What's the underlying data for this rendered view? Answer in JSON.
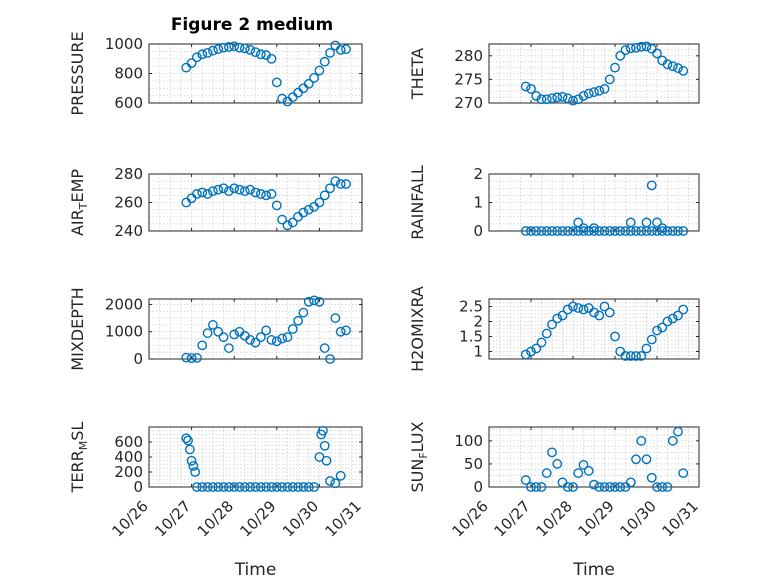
{
  "figure_title": "Figure 2 medium",
  "colors": {
    "series": "#0072BD",
    "axis": "#262626",
    "grid": "#cfcfcf"
  },
  "chart_data": [
    {
      "type": "scatter",
      "ylabel": "PRESSURE",
      "ylabel_parts": [
        {
          "t": "PRESSURE",
          "sub": false
        }
      ],
      "ylim": [
        600,
        1000
      ],
      "yticks": [
        600,
        800,
        1000
      ],
      "yticklabels": [
        "600",
        "800",
        "1000"
      ],
      "xlim": [
        "10/26",
        "10/31"
      ],
      "xticklabels": [],
      "x": [
        "10/26 21:00",
        "10/27 00:00",
        "10/27 03:00",
        "10/27 06:00",
        "10/27 09:00",
        "10/27 12:00",
        "10/27 15:00",
        "10/27 18:00",
        "10/27 21:00",
        "10/28 00:00",
        "10/28 03:00",
        "10/28 06:00",
        "10/28 09:00",
        "10/28 12:00",
        "10/28 15:00",
        "10/28 18:00",
        "10/28 21:00",
        "10/29 00:00",
        "10/29 03:00",
        "10/29 06:00",
        "10/29 09:00",
        "10/29 12:00",
        "10/29 15:00",
        "10/29 18:00",
        "10/29 21:00",
        "10/30 00:00",
        "10/30 03:00",
        "10/30 06:00",
        "10/30 09:00",
        "10/30 12:00",
        "10/30 15:00"
      ],
      "y": [
        840,
        870,
        910,
        930,
        940,
        955,
        965,
        975,
        980,
        985,
        975,
        970,
        960,
        945,
        930,
        925,
        900,
        740,
        630,
        610,
        640,
        670,
        700,
        730,
        770,
        820,
        880,
        940,
        990,
        960,
        965
      ]
    },
    {
      "type": "scatter",
      "ylabel": "THETA",
      "ylabel_parts": [
        {
          "t": "THETA",
          "sub": false
        }
      ],
      "ylim": [
        270,
        282.5
      ],
      "yticks": [
        270,
        275,
        280
      ],
      "yticklabels": [
        "270",
        "275",
        "280"
      ],
      "xlim": [
        "10/26",
        "10/31"
      ],
      "xticklabels": [],
      "x": [
        "10/26 21:00",
        "10/27 00:00",
        "10/27 03:00",
        "10/27 06:00",
        "10/27 09:00",
        "10/27 12:00",
        "10/27 15:00",
        "10/27 18:00",
        "10/27 21:00",
        "10/28 00:00",
        "10/28 03:00",
        "10/28 06:00",
        "10/28 09:00",
        "10/28 12:00",
        "10/28 15:00",
        "10/28 18:00",
        "10/28 21:00",
        "10/29 00:00",
        "10/29 03:00",
        "10/29 06:00",
        "10/29 09:00",
        "10/29 12:00",
        "10/29 15:00",
        "10/29 18:00",
        "10/29 21:00",
        "10/30 00:00",
        "10/30 03:00",
        "10/30 06:00",
        "10/30 09:00",
        "10/30 12:00",
        "10/30 15:00"
      ],
      "y": [
        273.5,
        273,
        271.5,
        270.8,
        270.8,
        271,
        271.2,
        271.3,
        271,
        270.5,
        270.8,
        271.5,
        272,
        272.3,
        272.6,
        273,
        275,
        277.5,
        280,
        281.2,
        281.6,
        281.7,
        281.9,
        282,
        281.5,
        280.5,
        279,
        278.2,
        277.8,
        277.4,
        276.8
      ]
    },
    {
      "type": "scatter",
      "ylabel": "AIR_TEMP",
      "ylabel_parts": [
        {
          "t": "AIR",
          "sub": false
        },
        {
          "t": "T",
          "sub": true
        },
        {
          "t": "EMP",
          "sub": false
        }
      ],
      "ylim": [
        240,
        280
      ],
      "yticks": [
        240,
        260,
        280
      ],
      "yticklabels": [
        "240",
        "260",
        "280"
      ],
      "xlim": [
        "10/26",
        "10/31"
      ],
      "xticklabels": [],
      "x": [
        "10/26 21:00",
        "10/27 00:00",
        "10/27 03:00",
        "10/27 06:00",
        "10/27 09:00",
        "10/27 12:00",
        "10/27 15:00",
        "10/27 18:00",
        "10/27 21:00",
        "10/28 00:00",
        "10/28 03:00",
        "10/28 06:00",
        "10/28 09:00",
        "10/28 12:00",
        "10/28 15:00",
        "10/28 18:00",
        "10/28 21:00",
        "10/29 00:00",
        "10/29 03:00",
        "10/29 06:00",
        "10/29 09:00",
        "10/29 12:00",
        "10/29 15:00",
        "10/29 18:00",
        "10/29 21:00",
        "10/30 00:00",
        "10/30 03:00",
        "10/30 06:00",
        "10/30 09:00",
        "10/30 12:00",
        "10/30 15:00"
      ],
      "y": [
        260,
        263,
        266,
        267,
        266,
        268,
        269,
        270,
        268,
        270,
        269,
        268,
        269,
        267,
        266,
        265,
        266,
        258,
        248,
        244,
        246,
        250,
        253,
        255,
        257,
        260,
        265,
        270,
        275,
        273,
        273
      ]
    },
    {
      "type": "scatter",
      "ylabel": "RAINFALL",
      "ylabel_parts": [
        {
          "t": "RAINFALL",
          "sub": false
        }
      ],
      "ylim": [
        0,
        2
      ],
      "yticks": [
        0,
        1,
        2
      ],
      "yticklabels": [
        "0",
        "1",
        "2"
      ],
      "xlim": [
        "10/26",
        "10/31"
      ],
      "xticklabels": [],
      "x": [
        "10/26 21:00",
        "10/27 00:00",
        "10/27 03:00",
        "10/27 06:00",
        "10/27 09:00",
        "10/27 12:00",
        "10/27 15:00",
        "10/27 18:00",
        "10/27 21:00",
        "10/28 00:00",
        "10/28 03:00",
        "10/28 06:00",
        "10/28 09:00",
        "10/28 12:00",
        "10/28 15:00",
        "10/28 18:00",
        "10/28 21:00",
        "10/29 00:00",
        "10/29 03:00",
        "10/29 06:00",
        "10/29 09:00",
        "10/29 12:00",
        "10/29 15:00",
        "10/29 18:00",
        "10/29 21:00",
        "10/30 00:00",
        "10/30 03:00",
        "10/30 06:00",
        "10/30 09:00",
        "10/30 12:00",
        "10/30 15:00",
        "10/28 03:00",
        "10/28 06:00",
        "10/28 12:00",
        "10/29 09:00",
        "10/29 18:00",
        "10/29 21:00",
        "10/30 00:00",
        "10/30 03:00"
      ],
      "y": [
        0,
        0,
        0,
        0,
        0,
        0,
        0,
        0,
        0,
        0,
        0,
        0,
        0,
        0,
        0,
        0,
        0,
        0,
        0,
        0,
        0,
        0,
        0,
        0,
        0,
        0,
        0,
        0,
        0,
        0,
        0,
        0.3,
        0.1,
        0.1,
        0.3,
        0.3,
        1.6,
        0.3,
        0.1
      ]
    },
    {
      "type": "scatter",
      "ylabel": "MIXDEPTH",
      "ylabel_parts": [
        {
          "t": "MIXDEPTH",
          "sub": false
        }
      ],
      "ylim": [
        0,
        2200
      ],
      "yticks": [
        0,
        1000,
        2000
      ],
      "yticklabels": [
        "0",
        "1000",
        "2000"
      ],
      "xlim": [
        "10/26",
        "10/31"
      ],
      "xticklabels": [],
      "x": [
        "10/26 21:00",
        "10/27 00:00",
        "10/27 03:00",
        "10/27 06:00",
        "10/27 09:00",
        "10/27 12:00",
        "10/27 15:00",
        "10/27 18:00",
        "10/27 21:00",
        "10/28 00:00",
        "10/28 03:00",
        "10/28 06:00",
        "10/28 09:00",
        "10/28 12:00",
        "10/28 15:00",
        "10/28 18:00",
        "10/28 21:00",
        "10/29 00:00",
        "10/29 03:00",
        "10/29 06:00",
        "10/29 09:00",
        "10/29 12:00",
        "10/29 15:00",
        "10/29 18:00",
        "10/29 21:00",
        "10/30 00:00",
        "10/30 03:00",
        "10/30 06:00",
        "10/30 09:00",
        "10/30 12:00",
        "10/30 15:00"
      ],
      "y": [
        50,
        30,
        40,
        500,
        950,
        1250,
        1000,
        800,
        400,
        900,
        1000,
        850,
        700,
        600,
        800,
        1050,
        700,
        650,
        750,
        800,
        1100,
        1400,
        1700,
        2100,
        2150,
        2100,
        400,
        0,
        1500,
        1000,
        1050
      ]
    },
    {
      "type": "scatter",
      "ylabel": "H2OMIXRA",
      "ylabel_parts": [
        {
          "t": "H2OMIXRA",
          "sub": false
        }
      ],
      "ylim": [
        0.75,
        2.75
      ],
      "yticks": [
        1,
        1.5,
        2,
        2.5
      ],
      "yticklabels": [
        "1",
        "1.5",
        "2",
        "2.5"
      ],
      "xlim": [
        "10/26",
        "10/31"
      ],
      "xticklabels": [],
      "x": [
        "10/26 21:00",
        "10/27 00:00",
        "10/27 03:00",
        "10/27 06:00",
        "10/27 09:00",
        "10/27 12:00",
        "10/27 15:00",
        "10/27 18:00",
        "10/27 21:00",
        "10/28 00:00",
        "10/28 03:00",
        "10/28 06:00",
        "10/28 09:00",
        "10/28 12:00",
        "10/28 15:00",
        "10/28 18:00",
        "10/28 21:00",
        "10/29 00:00",
        "10/29 03:00",
        "10/29 06:00",
        "10/29 09:00",
        "10/29 12:00",
        "10/29 15:00",
        "10/29 18:00",
        "10/29 21:00",
        "10/30 00:00",
        "10/30 03:00",
        "10/30 06:00",
        "10/30 09:00",
        "10/30 12:00",
        "10/30 15:00"
      ],
      "y": [
        0.9,
        1.0,
        1.1,
        1.3,
        1.6,
        1.9,
        2.1,
        2.2,
        2.4,
        2.5,
        2.45,
        2.4,
        2.45,
        2.3,
        2.2,
        2.5,
        2.3,
        1.5,
        1.0,
        0.85,
        0.85,
        0.85,
        0.85,
        1.1,
        1.4,
        1.7,
        1.8,
        2.0,
        2.1,
        2.2,
        2.4
      ]
    },
    {
      "type": "scatter",
      "ylabel": "TERR_MSL",
      "ylabel_parts": [
        {
          "t": "TERR",
          "sub": false
        },
        {
          "t": "M",
          "sub": true
        },
        {
          "t": "SL",
          "sub": false
        }
      ],
      "ylim": [
        0,
        800
      ],
      "yticks": [
        0,
        200,
        400,
        600
      ],
      "yticklabels": [
        "0",
        "200",
        "400",
        "600"
      ],
      "xlim": [
        "10/26",
        "10/31"
      ],
      "xticks": [
        0,
        1,
        2,
        3,
        4,
        5
      ],
      "xticklabels": [
        "10/26",
        "10/27",
        "10/28",
        "10/29",
        "10/30",
        "10/31"
      ],
      "xlabel": "Time",
      "x": [
        "10/26 21:00",
        "10/26 22:00",
        "10/26 23:00",
        "10/27 00:00",
        "10/27 01:00",
        "10/27 02:00",
        "10/27 03:00",
        "10/27 06:00",
        "10/27 09:00",
        "10/27 12:00",
        "10/27 15:00",
        "10/27 18:00",
        "10/27 21:00",
        "10/28 00:00",
        "10/28 03:00",
        "10/28 06:00",
        "10/28 09:00",
        "10/28 12:00",
        "10/28 15:00",
        "10/28 18:00",
        "10/28 21:00",
        "10/29 00:00",
        "10/29 03:00",
        "10/29 06:00",
        "10/29 09:00",
        "10/29 12:00",
        "10/29 15:00",
        "10/29 18:00",
        "10/29 21:00",
        "10/30 00:00",
        "10/30 01:00",
        "10/30 02:00",
        "10/30 03:00",
        "10/30 04:00",
        "10/30 06:00",
        "10/30 09:00",
        "10/30 12:00"
      ],
      "y": [
        650,
        620,
        500,
        350,
        280,
        200,
        0,
        0,
        0,
        0,
        0,
        0,
        0,
        0,
        0,
        0,
        0,
        0,
        0,
        0,
        0,
        0,
        0,
        0,
        0,
        0,
        0,
        0,
        0,
        400,
        700,
        750,
        550,
        350,
        80,
        50,
        150
      ]
    },
    {
      "type": "scatter",
      "ylabel": "SUN_FLUX",
      "ylabel_parts": [
        {
          "t": "SUN",
          "sub": false
        },
        {
          "t": "F",
          "sub": true
        },
        {
          "t": "LUX",
          "sub": false
        }
      ],
      "ylim": [
        0,
        130
      ],
      "yticks": [
        0,
        50,
        100
      ],
      "yticklabels": [
        "0",
        "50",
        "100"
      ],
      "xlim": [
        "10/26",
        "10/31"
      ],
      "xticks": [
        0,
        1,
        2,
        3,
        4,
        5
      ],
      "xticklabels": [
        "10/26",
        "10/27",
        "10/28",
        "10/29",
        "10/30",
        "10/31"
      ],
      "xlabel": "Time",
      "x": [
        "10/26 21:00",
        "10/27 00:00",
        "10/27 03:00",
        "10/27 06:00",
        "10/27 09:00",
        "10/27 12:00",
        "10/27 15:00",
        "10/27 18:00",
        "10/27 21:00",
        "10/28 00:00",
        "10/28 03:00",
        "10/28 06:00",
        "10/28 09:00",
        "10/28 12:00",
        "10/28 15:00",
        "10/28 18:00",
        "10/28 21:00",
        "10/29 00:00",
        "10/29 03:00",
        "10/29 06:00",
        "10/29 09:00",
        "10/29 12:00",
        "10/29 15:00",
        "10/29 18:00",
        "10/29 21:00",
        "10/30 00:00",
        "10/30 03:00",
        "10/30 06:00",
        "10/30 09:00",
        "10/30 12:00",
        "10/30 15:00"
      ],
      "y": [
        15,
        0,
        0,
        0,
        30,
        75,
        50,
        10,
        0,
        0,
        30,
        48,
        35,
        5,
        0,
        0,
        0,
        0,
        0,
        0,
        10,
        60,
        100,
        60,
        20,
        0,
        0,
        0,
        100,
        120,
        30
      ]
    }
  ]
}
